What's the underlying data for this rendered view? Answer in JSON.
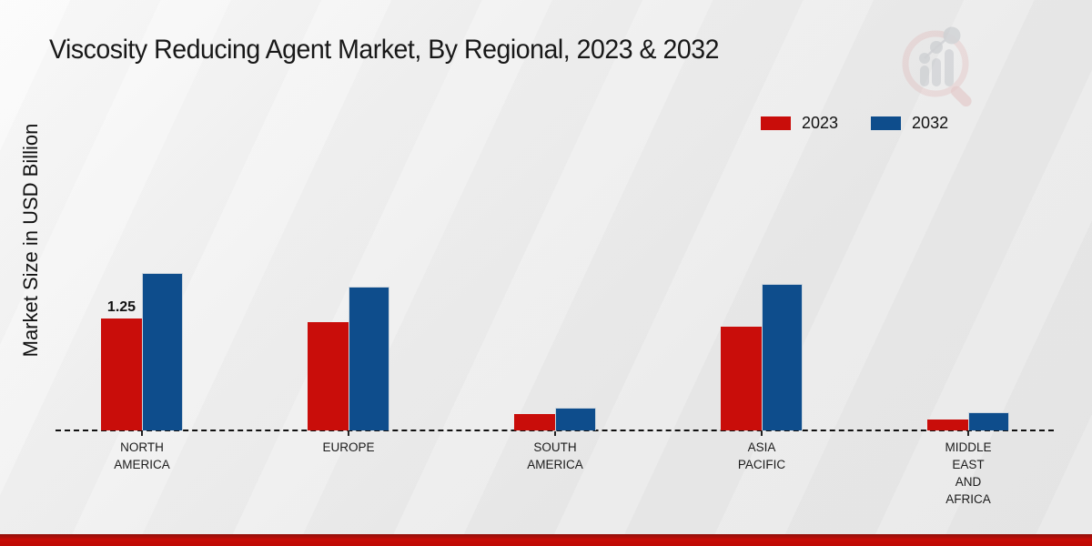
{
  "title": "Viscosity Reducing Agent Market, By Regional, 2023 & 2032",
  "ylabel": "Market Size in USD Billion",
  "legend": [
    {
      "label": "2023",
      "color": "#c90d0a"
    },
    {
      "label": "2032",
      "color": "#0e4d8c"
    }
  ],
  "colors": {
    "bar_2023": "#c90d0a",
    "bar_2032": "#0e4d8c",
    "footer_bar": "#c60c06",
    "background": "#eaeaea"
  },
  "watermark": {
    "name": "market-research-magnifier-logo"
  },
  "chart_data": {
    "type": "bar",
    "title": "Viscosity Reducing Agent Market, By Regional, 2023 & 2032",
    "ylabel": "Market Size in USD Billion",
    "xlabel": "",
    "categories": [
      "NORTH AMERICA",
      "EUROPE",
      "SOUTH AMERICA",
      "ASIA PACIFIC",
      "MIDDLE EAST AND AFRICA"
    ],
    "series": [
      {
        "name": "2023",
        "color": "#c90d0a",
        "values": [
          1.25,
          1.21,
          0.18,
          1.16,
          0.12
        ]
      },
      {
        "name": "2032",
        "color": "#0e4d8c",
        "values": [
          1.76,
          1.61,
          0.25,
          1.64,
          0.2
        ]
      }
    ],
    "annotations": [
      {
        "category_index": 0,
        "series": "2023",
        "text": "1.25"
      }
    ],
    "ylim": [
      0,
      2
    ],
    "grid": false,
    "baseline_style": "dashed",
    "legend_position": "top-right",
    "units": "USD Billion"
  }
}
